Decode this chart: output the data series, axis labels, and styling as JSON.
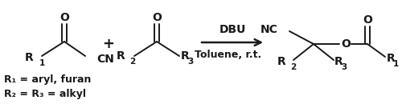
{
  "background_color": "#ffffff",
  "text_color": "#1a1a1a",
  "fs": 10,
  "fs_sub": 7.5,
  "fs_footnote": 9,
  "arrow_label_top": "DBU",
  "arrow_label_bottom": "Toluene, r.t.",
  "footnote1": "R₁ = aryl, furan",
  "footnote2": "R₂ = R₃ = alkyl"
}
